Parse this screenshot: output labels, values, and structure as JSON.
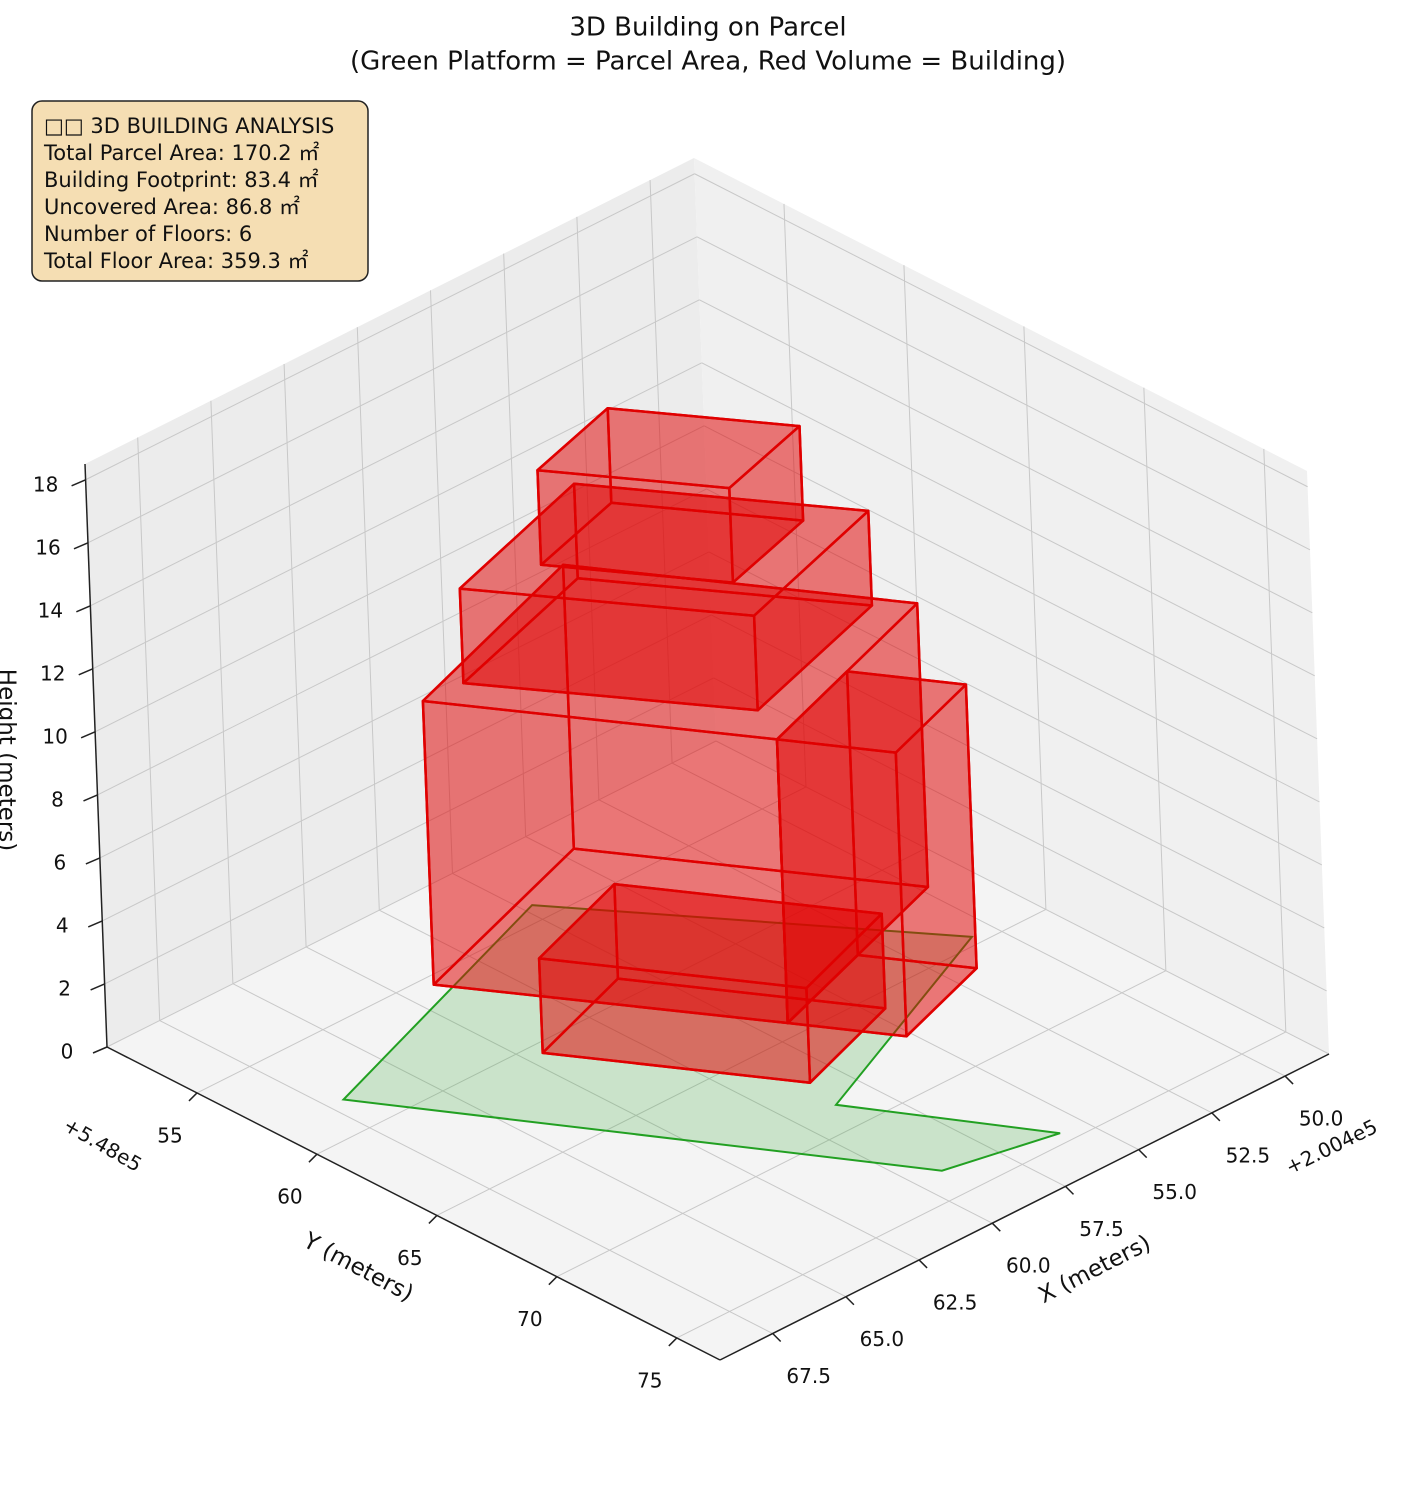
{
  "chart_data": {
    "type": "building3d",
    "title": "3D Building on Parcel",
    "subtitle": "(Green Platform = Parcel Area, Red Volume = Building)",
    "annotation": [
      "□□ 3D BUILDING ANALYSIS",
      "Total Parcel Area: 170.2 ㎡",
      "Building Footprint: 83.4 ㎡",
      "Uncovered Area: 86.8 ㎡",
      "Number of Floors: 6",
      "Total Floor Area: 359.3 ㎡"
    ],
    "x_label": "X (meters)",
    "y_label": "Y (meters)",
    "z_label": "Height (meters)",
    "x_offset_label": "+2.004e5",
    "y_offset_label": "+5.48e5",
    "xlim": [
      48.5,
      69.3
    ],
    "ylim": [
      51.25,
      76.8
    ],
    "zlim": [
      0,
      18.5
    ],
    "xticks": [
      {
        "value": 50,
        "label": "50.0"
      },
      52.5,
      {
        "value": 55,
        "label": "55.0"
      },
      57.5,
      {
        "value": 60,
        "label": "60.0"
      },
      62.5,
      {
        "value": 65,
        "label": "65.0"
      },
      67.5
    ],
    "yticks": [
      55,
      60,
      65,
      70,
      75
    ],
    "zticks": [
      0,
      2,
      4,
      6,
      8,
      10,
      12,
      14,
      16,
      18
    ],
    "grid": true,
    "parcel": {
      "color": "#22a022",
      "x": [
        57.2,
        50.7,
        58.7,
        55.8,
        59.1,
        67.0
      ],
      "y": [
        54.2,
        64.6,
        68.7,
        74.5,
        73.6,
        58.3
      ]
    },
    "building_color": "#e00000",
    "volumes": [
      {
        "x": [
          62.0,
          58.2,
          54.6,
          58.4
        ],
        "y": [
          60.5,
          59.0,
          65.75,
          67.25
        ],
        "z": [
          0,
          3
        ]
      },
      {
        "x": [
          64.7,
          57.7,
          52.9,
          59.9
        ],
        "y": [
          59.4,
          56.7,
          65.6,
          68.3
        ],
        "z": [
          3,
          12
        ]
      },
      {
        "x": [
          59.9,
          56.4,
          54.8,
          58.3
        ],
        "y": [
          68.3,
          66.95,
          69.95,
          71.3
        ],
        "z": [
          3,
          12
        ]
      },
      {
        "x": [
          63.4,
          57.9,
          53.75,
          59.25
        ],
        "y": [
          59.5,
          57.55,
          64.75,
          66.7
        ],
        "z": [
          12,
          15
        ]
      },
      {
        "x": [
          61.2,
          57.9,
          55.2,
          58.5
        ],
        "y": [
          60.2,
          59.1,
          63.8,
          64.9
        ],
        "z": [
          15,
          18
        ]
      }
    ]
  }
}
